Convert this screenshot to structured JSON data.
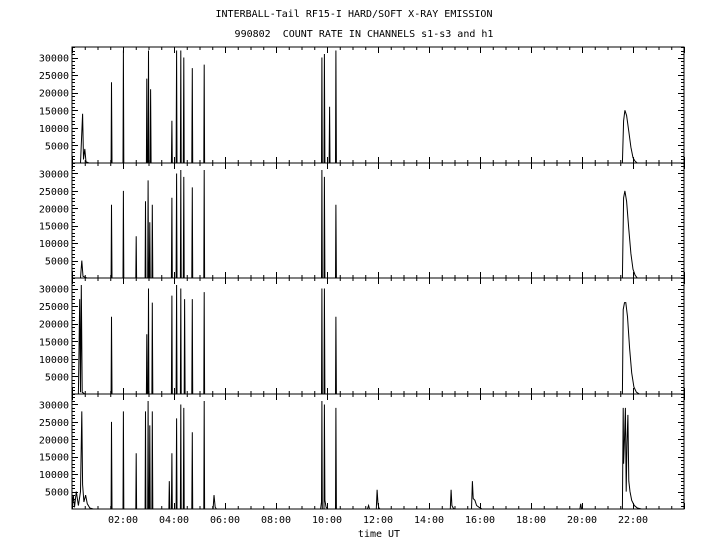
{
  "title_line1": "INTERBALL-Tail RF15-I HARD/SOFT X-RAY EMISSION",
  "title_line2": "990802  COUNT RATE IN CHANNELS s1-s3 and h1",
  "chart_data": {
    "type": "line",
    "xlabel": "time UT",
    "xlim": [
      "00:00",
      "24:00"
    ],
    "xticks": [
      "02:00",
      "04:00",
      "06:00",
      "08:00",
      "10:00",
      "12:00",
      "14:00",
      "16:00",
      "18:00",
      "20:00",
      "22:00"
    ],
    "ylim": [
      0,
      33000
    ],
    "yticks": [
      5000,
      10000,
      15000,
      20000,
      25000,
      30000
    ],
    "panels": [
      {
        "points": [
          [
            "00:00",
            0
          ],
          [
            "00:20",
            0
          ],
          [
            "00:25",
            14000
          ],
          [
            "00:27",
            1000
          ],
          [
            "00:30",
            4000
          ],
          [
            "00:33",
            300
          ],
          [
            "00:40",
            0
          ],
          [
            "01:32",
            0
          ],
          [
            "01:33",
            23000
          ],
          [
            "01:34",
            0
          ],
          [
            "02:00",
            0
          ],
          [
            "02:01",
            32000
          ],
          [
            "02:02",
            0
          ],
          [
            "02:55",
            0
          ],
          [
            "02:56",
            24000
          ],
          [
            "02:57",
            0
          ],
          [
            "02:59",
            0
          ],
          [
            "03:00",
            32000
          ],
          [
            "03:01",
            0
          ],
          [
            "03:04",
            0
          ],
          [
            "03:05",
            21000
          ],
          [
            "03:06",
            0
          ],
          [
            "03:54",
            0
          ],
          [
            "03:55",
            12000
          ],
          [
            "03:56",
            0
          ],
          [
            "04:05",
            0
          ],
          [
            "04:06",
            32000
          ],
          [
            "04:07",
            0
          ],
          [
            "04:15",
            0
          ],
          [
            "04:16",
            32000
          ],
          [
            "04:17",
            0
          ],
          [
            "04:22",
            0
          ],
          [
            "04:23",
            30000
          ],
          [
            "04:24",
            0
          ],
          [
            "04:42",
            0
          ],
          [
            "04:43",
            27000
          ],
          [
            "04:44",
            0
          ],
          [
            "05:10",
            0
          ],
          [
            "05:11",
            28000
          ],
          [
            "05:12",
            0
          ],
          [
            "09:47",
            0
          ],
          [
            "09:48",
            30000
          ],
          [
            "09:49",
            0
          ],
          [
            "09:53",
            0
          ],
          [
            "09:54",
            31000
          ],
          [
            "09:55",
            0
          ],
          [
            "10:05",
            0
          ],
          [
            "10:06",
            16000
          ],
          [
            "10:07",
            0
          ],
          [
            "10:20",
            0
          ],
          [
            "10:21",
            32000
          ],
          [
            "10:22",
            0
          ],
          [
            "21:35",
            0
          ],
          [
            "21:38",
            12000
          ],
          [
            "21:41",
            15000
          ],
          [
            "21:45",
            13500
          ],
          [
            "21:50",
            9000
          ],
          [
            "21:55",
            4500
          ],
          [
            "22:00",
            1500
          ],
          [
            "22:05",
            500
          ],
          [
            "22:10",
            0
          ],
          [
            "24:00",
            0
          ]
        ]
      },
      {
        "points": [
          [
            "00:00",
            0
          ],
          [
            "00:20",
            0
          ],
          [
            "00:23",
            5000
          ],
          [
            "00:26",
            500
          ],
          [
            "00:35",
            0
          ],
          [
            "01:32",
            0
          ],
          [
            "01:33",
            21000
          ],
          [
            "01:34",
            0
          ],
          [
            "02:00",
            0
          ],
          [
            "02:01",
            25000
          ],
          [
            "02:02",
            0
          ],
          [
            "02:30",
            0
          ],
          [
            "02:31",
            12000
          ],
          [
            "02:32",
            0
          ],
          [
            "02:52",
            0
          ],
          [
            "02:53",
            22000
          ],
          [
            "02:54",
            0
          ],
          [
            "02:58",
            0
          ],
          [
            "02:59",
            28000
          ],
          [
            "03:00",
            0
          ],
          [
            "03:02",
            0
          ],
          [
            "03:03",
            16000
          ],
          [
            "03:04",
            0
          ],
          [
            "03:08",
            0
          ],
          [
            "03:09",
            21000
          ],
          [
            "03:10",
            0
          ],
          [
            "03:54",
            0
          ],
          [
            "03:55",
            23000
          ],
          [
            "03:56",
            0
          ],
          [
            "04:05",
            0
          ],
          [
            "04:06",
            30000
          ],
          [
            "04:07",
            0
          ],
          [
            "04:15",
            0
          ],
          [
            "04:16",
            31000
          ],
          [
            "04:17",
            0
          ],
          [
            "04:22",
            0
          ],
          [
            "04:23",
            29000
          ],
          [
            "04:24",
            0
          ],
          [
            "04:42",
            0
          ],
          [
            "04:43",
            26000
          ],
          [
            "04:44",
            0
          ],
          [
            "05:10",
            0
          ],
          [
            "05:11",
            31000
          ],
          [
            "05:12",
            0
          ],
          [
            "09:47",
            0
          ],
          [
            "09:48",
            31000
          ],
          [
            "09:49",
            0
          ],
          [
            "09:53",
            0
          ],
          [
            "09:54",
            29000
          ],
          [
            "09:55",
            0
          ],
          [
            "10:20",
            0
          ],
          [
            "10:21",
            21000
          ],
          [
            "10:22",
            0
          ],
          [
            "21:35",
            0
          ],
          [
            "21:38",
            23000
          ],
          [
            "21:41",
            25000
          ],
          [
            "21:45",
            22000
          ],
          [
            "21:50",
            14000
          ],
          [
            "21:55",
            7000
          ],
          [
            "22:00",
            2500
          ],
          [
            "22:05",
            800
          ],
          [
            "22:10",
            0
          ],
          [
            "24:00",
            0
          ]
        ]
      },
      {
        "points": [
          [
            "00:00",
            0
          ],
          [
            "00:15",
            0
          ],
          [
            "00:18",
            27000
          ],
          [
            "00:20",
            500
          ],
          [
            "00:22",
            31000
          ],
          [
            "00:24",
            500
          ],
          [
            "00:30",
            0
          ],
          [
            "01:32",
            0
          ],
          [
            "01:33",
            22000
          ],
          [
            "01:34",
            0
          ],
          [
            "02:55",
            0
          ],
          [
            "02:56",
            17000
          ],
          [
            "02:57",
            0
          ],
          [
            "02:59",
            0
          ],
          [
            "03:00",
            30000
          ],
          [
            "03:01",
            0
          ],
          [
            "03:08",
            0
          ],
          [
            "03:09",
            26000
          ],
          [
            "03:10",
            0
          ],
          [
            "03:54",
            0
          ],
          [
            "03:55",
            28000
          ],
          [
            "03:56",
            0
          ],
          [
            "04:05",
            0
          ],
          [
            "04:06",
            31000
          ],
          [
            "04:07",
            0
          ],
          [
            "04:15",
            0
          ],
          [
            "04:16",
            30000
          ],
          [
            "04:17",
            0
          ],
          [
            "04:24",
            0
          ],
          [
            "04:25",
            27000
          ],
          [
            "04:26",
            0
          ],
          [
            "04:42",
            0
          ],
          [
            "04:43",
            27000
          ],
          [
            "04:44",
            0
          ],
          [
            "05:10",
            0
          ],
          [
            "05:11",
            29000
          ],
          [
            "05:12",
            0
          ],
          [
            "09:47",
            0
          ],
          [
            "09:48",
            30000
          ],
          [
            "09:49",
            0
          ],
          [
            "09:53",
            0
          ],
          [
            "09:54",
            30000
          ],
          [
            "09:55",
            0
          ],
          [
            "10:20",
            0
          ],
          [
            "10:21",
            22000
          ],
          [
            "10:22",
            0
          ],
          [
            "21:35",
            0
          ],
          [
            "21:37",
            24000
          ],
          [
            "21:40",
            26000
          ],
          [
            "21:43",
            26000
          ],
          [
            "21:47",
            22000
          ],
          [
            "21:52",
            13000
          ],
          [
            "21:57",
            6000
          ],
          [
            "22:02",
            2000
          ],
          [
            "22:08",
            500
          ],
          [
            "22:15",
            0
          ],
          [
            "24:00",
            0
          ]
        ]
      },
      {
        "points": [
          [
            "00:00",
            0
          ],
          [
            "00:03",
            4000
          ],
          [
            "00:06",
            500
          ],
          [
            "00:10",
            5000
          ],
          [
            "00:15",
            1000
          ],
          [
            "00:20",
            5000
          ],
          [
            "00:23",
            28000
          ],
          [
            "00:25",
            7000
          ],
          [
            "00:28",
            2000
          ],
          [
            "00:32",
            4000
          ],
          [
            "00:36",
            1500
          ],
          [
            "00:42",
            300
          ],
          [
            "00:50",
            0
          ],
          [
            "01:32",
            0
          ],
          [
            "01:33",
            25000
          ],
          [
            "01:34",
            0
          ],
          [
            "02:00",
            0
          ],
          [
            "02:01",
            28000
          ],
          [
            "02:02",
            0
          ],
          [
            "02:30",
            0
          ],
          [
            "02:31",
            16000
          ],
          [
            "02:32",
            0
          ],
          [
            "02:52",
            0
          ],
          [
            "02:53",
            28000
          ],
          [
            "02:54",
            0
          ],
          [
            "02:58",
            0
          ],
          [
            "02:59",
            31000
          ],
          [
            "03:00",
            0
          ],
          [
            "03:02",
            0
          ],
          [
            "03:03",
            24000
          ],
          [
            "03:04",
            0
          ],
          [
            "03:08",
            0
          ],
          [
            "03:09",
            28000
          ],
          [
            "03:10",
            0
          ],
          [
            "03:48",
            0
          ],
          [
            "03:49",
            8000
          ],
          [
            "03:50",
            0
          ],
          [
            "03:54",
            0
          ],
          [
            "03:55",
            16000
          ],
          [
            "03:56",
            0
          ],
          [
            "04:05",
            0
          ],
          [
            "04:06",
            26000
          ],
          [
            "04:07",
            0
          ],
          [
            "04:15",
            0
          ],
          [
            "04:16",
            30000
          ],
          [
            "04:17",
            0
          ],
          [
            "04:22",
            0
          ],
          [
            "04:23",
            29000
          ],
          [
            "04:24",
            0
          ],
          [
            "04:42",
            0
          ],
          [
            "04:43",
            22000
          ],
          [
            "04:44",
            0
          ],
          [
            "05:10",
            0
          ],
          [
            "05:11",
            31000
          ],
          [
            "05:12",
            0
          ],
          [
            "05:32",
            0
          ],
          [
            "05:34",
            4000
          ],
          [
            "05:37",
            500
          ],
          [
            "05:40",
            0
          ],
          [
            "09:45",
            0
          ],
          [
            "09:47",
            2000
          ],
          [
            "09:48",
            31000
          ],
          [
            "09:49",
            0
          ],
          [
            "09:53",
            0
          ],
          [
            "09:54",
            30000
          ],
          [
            "09:55",
            2500
          ],
          [
            "09:58",
            500
          ],
          [
            "10:02",
            0
          ],
          [
            "10:20",
            0
          ],
          [
            "10:21",
            29000
          ],
          [
            "10:22",
            0
          ],
          [
            "11:35",
            0
          ],
          [
            "11:38",
            1000
          ],
          [
            "11:40",
            0
          ],
          [
            "11:56",
            0
          ],
          [
            "11:58",
            5500
          ],
          [
            "12:00",
            1500
          ],
          [
            "12:02",
            300
          ],
          [
            "12:05",
            0
          ],
          [
            "14:50",
            0
          ],
          [
            "14:52",
            5500
          ],
          [
            "14:54",
            1000
          ],
          [
            "14:57",
            300
          ],
          [
            "15:00",
            0
          ],
          [
            "15:40",
            0
          ],
          [
            "15:42",
            8000
          ],
          [
            "15:44",
            3000
          ],
          [
            "15:48",
            2500
          ],
          [
            "15:52",
            1000
          ],
          [
            "15:58",
            500
          ],
          [
            "16:05",
            0
          ],
          [
            "19:55",
            0
          ],
          [
            "19:57",
            1500
          ],
          [
            "19:59",
            0
          ],
          [
            "21:35",
            0
          ],
          [
            "21:37",
            29000
          ],
          [
            "21:38",
            13000
          ],
          [
            "21:40",
            20000
          ],
          [
            "21:42",
            29000
          ],
          [
            "21:44",
            5000
          ],
          [
            "21:46",
            19000
          ],
          [
            "21:48",
            27000
          ],
          [
            "21:50",
            8000
          ],
          [
            "21:53",
            5000
          ],
          [
            "21:57",
            2500
          ],
          [
            "22:03",
            1000
          ],
          [
            "22:10",
            300
          ],
          [
            "22:20",
            0
          ],
          [
            "24:00",
            0
          ]
        ]
      }
    ]
  }
}
